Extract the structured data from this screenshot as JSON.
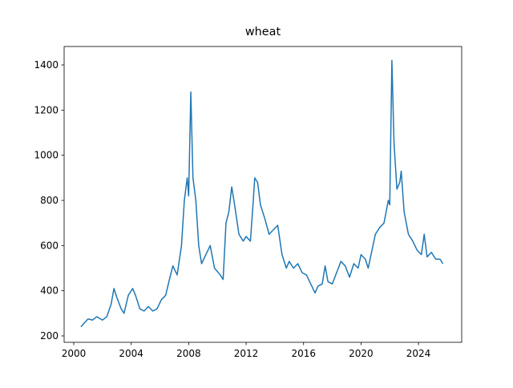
{
  "chart_data": {
    "type": "line",
    "title": "wheat",
    "x": [
      2000.5,
      2000.7,
      2001.0,
      2001.3,
      2001.6,
      2002.0,
      2002.3,
      2002.6,
      2002.8,
      2003.0,
      2003.3,
      2003.5,
      2003.8,
      2004.1,
      2004.3,
      2004.6,
      2004.9,
      2005.2,
      2005.5,
      2005.8,
      2006.1,
      2006.4,
      2006.7,
      2006.9,
      2007.2,
      2007.5,
      2007.7,
      2007.9,
      2008.0,
      2008.15,
      2008.3,
      2008.5,
      2008.7,
      2008.9,
      2009.2,
      2009.5,
      2009.8,
      2010.2,
      2010.4,
      2010.6,
      2010.8,
      2011.0,
      2011.2,
      2011.5,
      2011.8,
      2012.0,
      2012.3,
      2012.5,
      2012.6,
      2012.8,
      2013.0,
      2013.3,
      2013.6,
      2013.9,
      2014.2,
      2014.5,
      2014.8,
      2015.0,
      2015.3,
      2015.6,
      2015.9,
      2016.2,
      2016.5,
      2016.8,
      2017.0,
      2017.3,
      2017.5,
      2017.7,
      2018.0,
      2018.3,
      2018.6,
      2018.9,
      2019.2,
      2019.5,
      2019.8,
      2020.0,
      2020.3,
      2020.5,
      2020.8,
      2021.0,
      2021.3,
      2021.6,
      2021.9,
      2022.0,
      2022.15,
      2022.3,
      2022.5,
      2022.7,
      2022.8,
      2023.0,
      2023.3,
      2023.6,
      2023.9,
      2024.2,
      2024.4,
      2024.6,
      2024.9,
      2025.2,
      2025.5,
      2025.7
    ],
    "series": [
      {
        "color": "#1f77b4",
        "values": [
          240,
          255,
          275,
          270,
          285,
          270,
          285,
          340,
          410,
          370,
          320,
          300,
          380,
          410,
          380,
          320,
          310,
          330,
          310,
          320,
          360,
          380,
          460,
          510,
          470,
          600,
          800,
          900,
          820,
          1280,
          900,
          800,
          600,
          520,
          560,
          600,
          500,
          470,
          450,
          700,
          750,
          860,
          780,
          650,
          620,
          640,
          620,
          800,
          900,
          880,
          780,
          720,
          650,
          670,
          690,
          560,
          500,
          530,
          500,
          520,
          480,
          470,
          430,
          390,
          420,
          430,
          510,
          440,
          430,
          480,
          530,
          510,
          460,
          520,
          500,
          560,
          540,
          500,
          590,
          650,
          680,
          700,
          800,
          780,
          1420,
          1050,
          850,
          880,
          930,
          750,
          650,
          620,
          580,
          560,
          650,
          550,
          570,
          540,
          540,
          520
        ]
      }
    ],
    "xlim": [
      1999.33,
      2027.01
    ],
    "ylim": [
      171.6,
      1481.7
    ],
    "xticks": [
      2000,
      2004,
      2008,
      2012,
      2016,
      2020,
      2024
    ],
    "yticks": [
      200,
      400,
      600,
      800,
      1000,
      1200,
      1400
    ]
  }
}
